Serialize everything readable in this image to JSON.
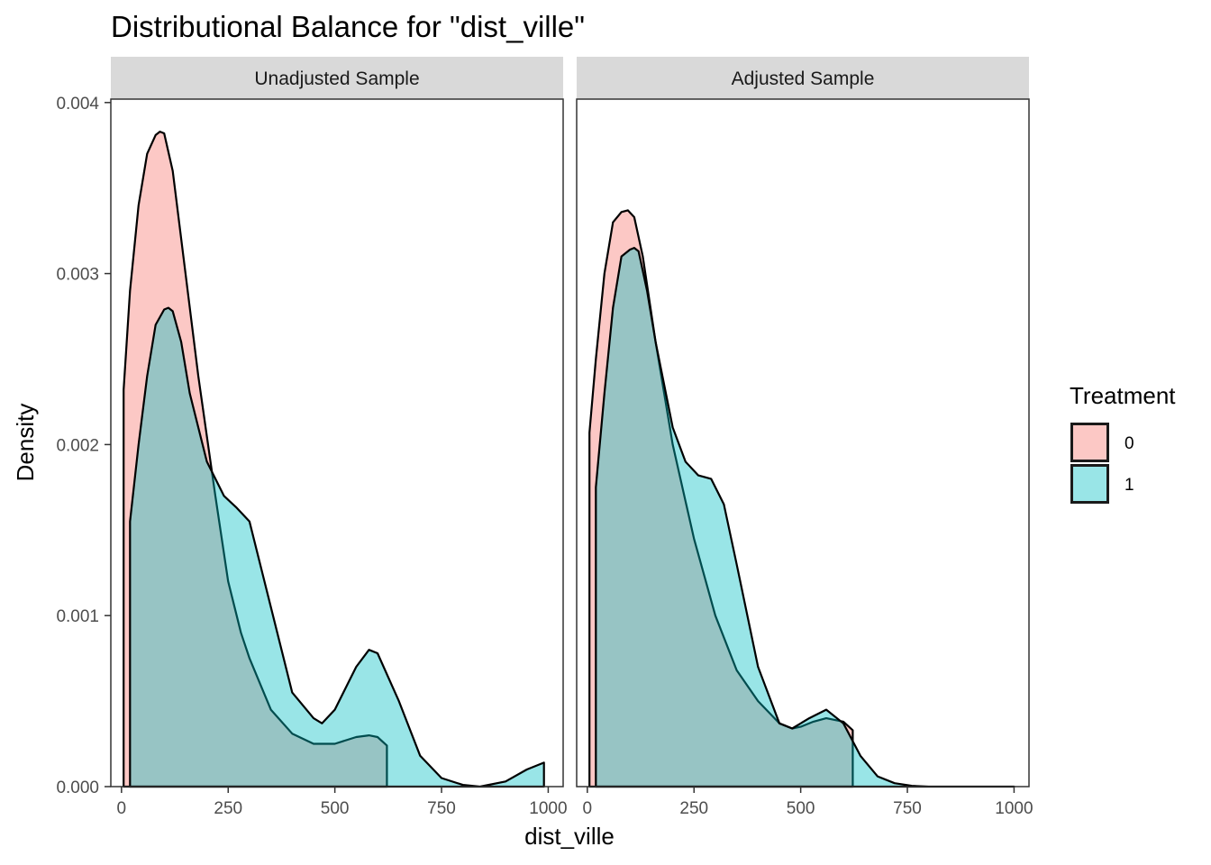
{
  "chart_data": {
    "type": "area",
    "title": "Distributional Balance for \"dist_ville\"",
    "xlabel": "dist_ville",
    "ylabel": "Density",
    "xlim": [
      -25,
      1035
    ],
    "ylim": [
      0,
      0.00402
    ],
    "x_ticks": [
      0,
      250,
      500,
      750,
      1000
    ],
    "x_tick_labels": [
      "0",
      "250",
      "500",
      "750",
      "1000"
    ],
    "y_ticks": [
      0,
      0.001,
      0.002,
      0.003,
      0.004
    ],
    "y_tick_labels": [
      "0.000",
      "0.001",
      "0.002",
      "0.003",
      "0.004"
    ],
    "grid": false,
    "legend": {
      "title": "Treatment",
      "position": "right",
      "entries": [
        {
          "label": "0",
          "color": "#F8766D"
        },
        {
          "label": "1",
          "color": "#00BFC4"
        }
      ]
    },
    "fill_alpha": 0.4,
    "panels": [
      {
        "strip": "Unadjusted Sample",
        "series": [
          {
            "name": "0",
            "color": "#F8766D",
            "x": [
              5,
              20,
              40,
              60,
              80,
              90,
              100,
              120,
              150,
              180,
              220,
              250,
              280,
              300,
              350,
              400,
              450,
              500,
              550,
              580,
              600,
              622
            ],
            "y": [
              0.00232,
              0.0029,
              0.0034,
              0.0037,
              0.00381,
              0.00383,
              0.00382,
              0.0036,
              0.003,
              0.0024,
              0.0017,
              0.0012,
              0.0009,
              0.00075,
              0.00045,
              0.00031,
              0.00025,
              0.00025,
              0.00029,
              0.0003,
              0.00029,
              0.00024
            ]
          },
          {
            "name": "1",
            "color": "#00BFC4",
            "x": [
              20,
              40,
              60,
              80,
              100,
              110,
              120,
              140,
              160,
              200,
              240,
              270,
              300,
              350,
              400,
              450,
              470,
              500,
              550,
              580,
              600,
              650,
              700,
              750,
              800,
              840,
              900,
              950,
              990
            ],
            "y": [
              0.00155,
              0.002,
              0.0024,
              0.0027,
              0.00279,
              0.0028,
              0.00278,
              0.0026,
              0.0023,
              0.0019,
              0.0017,
              0.00163,
              0.00155,
              0.00105,
              0.00055,
              0.0004,
              0.00037,
              0.00045,
              0.0007,
              0.0008,
              0.00078,
              0.0005,
              0.00018,
              5e-05,
              1e-05,
              0.0,
              3e-05,
              0.0001,
              0.00014
            ]
          }
        ]
      },
      {
        "strip": "Adjusted Sample",
        "series": [
          {
            "name": "0",
            "color": "#F8766D",
            "x": [
              5,
              20,
              40,
              60,
              80,
              95,
              110,
              130,
              160,
              200,
              250,
              300,
              350,
              400,
              450,
              480,
              500,
              530,
              560,
              600,
              622
            ],
            "y": [
              0.00207,
              0.0025,
              0.003,
              0.0033,
              0.00336,
              0.00337,
              0.00333,
              0.0031,
              0.0026,
              0.002,
              0.00145,
              0.001,
              0.00068,
              0.0005,
              0.00037,
              0.00034,
              0.00035,
              0.00038,
              0.0004,
              0.00038,
              0.00033
            ]
          },
          {
            "name": "1",
            "color": "#00BFC4",
            "x": [
              20,
              40,
              60,
              80,
              100,
              110,
              120,
              140,
              160,
              200,
              230,
              260,
              290,
              320,
              350,
              400,
              450,
              480,
              520,
              560,
              600,
              640,
              680,
              720,
              760,
              800,
              1000
            ],
            "y": [
              0.00175,
              0.0023,
              0.0028,
              0.0031,
              0.00314,
              0.00315,
              0.00313,
              0.0029,
              0.0026,
              0.0021,
              0.0019,
              0.00182,
              0.0018,
              0.00165,
              0.0013,
              0.0007,
              0.00037,
              0.00034,
              0.0004,
              0.00045,
              0.00037,
              0.00018,
              6e-05,
              2e-05,
              5e-06,
              0.0,
              0.0
            ]
          }
        ]
      }
    ]
  }
}
